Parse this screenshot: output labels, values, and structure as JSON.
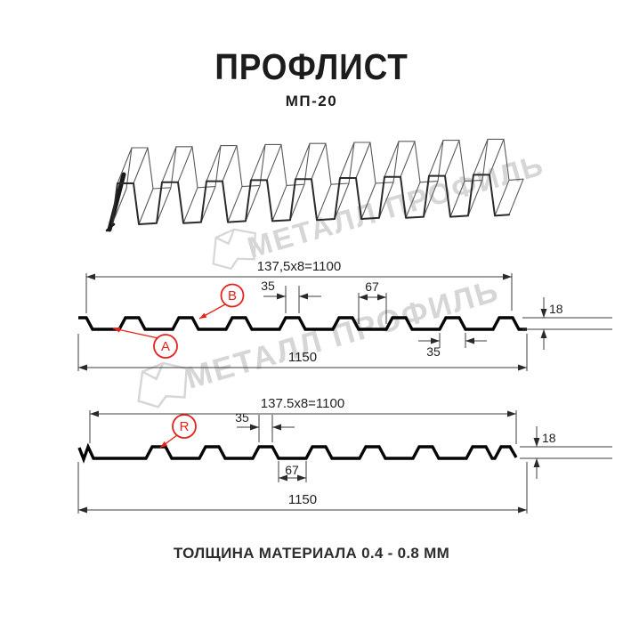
{
  "header": {
    "title": "ПРОФЛИСТ",
    "subtitle": "МП-20"
  },
  "footer": {
    "caption": "ТОЛЩИНА МАТЕРИАЛА 0.4 - 0.8 ММ"
  },
  "watermark": {
    "brand_text": "МЕТАЛЛ ПРОФИЛЬ",
    "color": "#d6d6d6"
  },
  "colors": {
    "accent_red": "#e5231b",
    "line": "#1a1a1a",
    "dim_line": "#3c3c3c"
  },
  "section_top": {
    "side_label_a": "А",
    "side_label_b": "В",
    "dim_width_pattern": "137,5x8=1100",
    "dim_rib_top": "35",
    "dim_valley": "67",
    "dim_height": "18",
    "dim_rib_bottom": "35",
    "dim_total_width": "1150"
  },
  "section_bottom": {
    "side_label_r": "R",
    "dim_width_pattern": "137.5x8=1100",
    "dim_rib_top": "35",
    "dim_valley": "67",
    "dim_height": "18",
    "dim_total_width": "1150"
  }
}
